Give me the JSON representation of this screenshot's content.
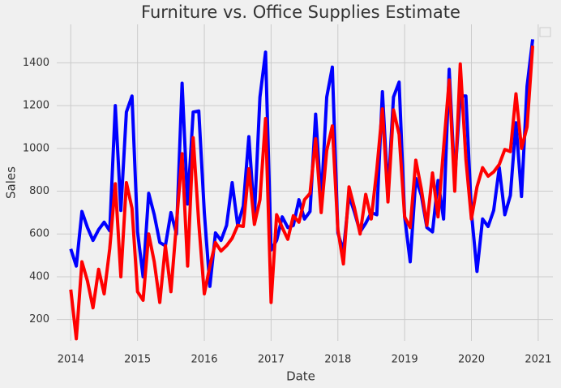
{
  "chart_data": {
    "type": "line",
    "title": "Furniture vs. Office Supplies Estimate",
    "xlabel": "Date",
    "ylabel": "Sales",
    "x": [
      2014,
      2014.083,
      2014.167,
      2014.25,
      2014.333,
      2014.417,
      2014.5,
      2014.583,
      2014.667,
      2014.75,
      2014.833,
      2014.917,
      2015,
      2015.083,
      2015.167,
      2015.25,
      2015.333,
      2015.417,
      2015.5,
      2015.583,
      2015.667,
      2015.75,
      2015.833,
      2015.917,
      2016,
      2016.083,
      2016.167,
      2016.25,
      2016.333,
      2016.417,
      2016.5,
      2016.583,
      2016.667,
      2016.75,
      2016.833,
      2016.917,
      2017,
      2017.083,
      2017.167,
      2017.25,
      2017.333,
      2017.417,
      2017.5,
      2017.583,
      2017.667,
      2017.75,
      2017.833,
      2017.917,
      2018,
      2018.083,
      2018.167,
      2018.25,
      2018.333,
      2018.417,
      2018.5,
      2018.583,
      2018.667,
      2018.75,
      2018.833,
      2018.917,
      2019,
      2019.083,
      2019.167,
      2019.25,
      2019.333,
      2019.417,
      2019.5,
      2019.583,
      2019.667,
      2019.75,
      2019.833,
      2019.917,
      2020,
      2020.083,
      2020.167,
      2020.25,
      2020.333,
      2020.417,
      2020.5,
      2020.583,
      2020.667,
      2020.75,
      2020.833,
      2020.917
    ],
    "series": [
      {
        "color": "#0000ff",
        "values": [
          530,
          450,
          705,
          630,
          570,
          620,
          655,
          615,
          1200,
          710,
          1170,
          1245,
          610,
          400,
          790,
          690,
          560,
          545,
          700,
          600,
          1305,
          740,
          1170,
          1175,
          700,
          355,
          605,
          570,
          640,
          840,
          640,
          730,
          1055,
          680,
          1240,
          1450,
          525,
          570,
          680,
          630,
          640,
          760,
          670,
          705,
          1160,
          750,
          1240,
          1380,
          605,
          520,
          780,
          700,
          610,
          650,
          700,
          690,
          1265,
          790,
          1240,
          1310,
          680,
          470,
          860,
          780,
          630,
          610,
          850,
          670,
          1370,
          850,
          1245,
          1245,
          700,
          425,
          670,
          635,
          710,
          910,
          690,
          780,
          1120,
          775,
          1290,
          1510
        ]
      },
      {
        "color": "#ff0000",
        "values": [
          340,
          110,
          470,
          380,
          255,
          435,
          320,
          530,
          835,
          400,
          840,
          720,
          330,
          290,
          600,
          470,
          280,
          545,
          330,
          650,
          975,
          450,
          1050,
          650,
          320,
          450,
          560,
          520,
          545,
          580,
          640,
          635,
          905,
          645,
          760,
          1140,
          280,
          690,
          630,
          575,
          685,
          655,
          760,
          790,
          1045,
          700,
          990,
          1105,
          620,
          460,
          820,
          720,
          600,
          785,
          670,
          900,
          1185,
          750,
          1180,
          1065,
          680,
          630,
          945,
          810,
          640,
          885,
          680,
          1000,
          1320,
          800,
          1395,
          950,
          670,
          820,
          910,
          870,
          890,
          925,
          995,
          985,
          1255,
          1000,
          1100,
          1480
        ]
      }
    ],
    "xlim": [
      2013.79,
      2021.22
    ],
    "xticks": [
      2014,
      2015,
      2016,
      2017,
      2018,
      2019,
      2020,
      2021
    ],
    "ylim": [
      100,
      1580
    ],
    "yticks": [
      200,
      400,
      600,
      800,
      1000,
      1200,
      1400
    ],
    "grid": true
  }
}
